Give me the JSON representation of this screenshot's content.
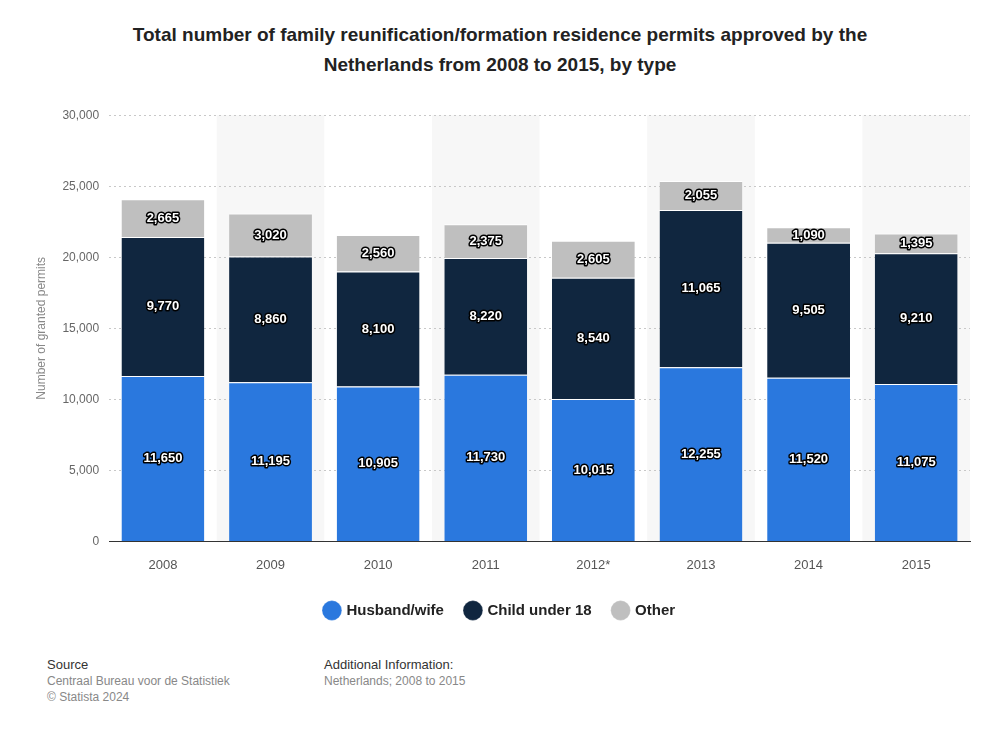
{
  "chart_data": {
    "type": "bar",
    "title": "Total number of family reunification/formation residence permits approved by the Netherlands from 2008 to 2015, by type",
    "y_label": "Number of granted permits",
    "categories": [
      "2008",
      "2009",
      "2010",
      "2011",
      "2012*",
      "2013",
      "2014",
      "2015"
    ],
    "series": [
      {
        "name": "Husband/wife",
        "color": "#2a78de",
        "values": [
          11650,
          11195,
          10905,
          11730,
          10015,
          12255,
          11520,
          11075
        ],
        "value_labels": [
          "11,650",
          "11,195",
          "10,905",
          "11,730",
          "10,015",
          "12,255",
          "11,520",
          "11,075"
        ]
      },
      {
        "name": "Child under 18",
        "color": "#10263f",
        "values": [
          9770,
          8860,
          8100,
          8220,
          8540,
          11065,
          9505,
          9210
        ],
        "value_labels": [
          "9,770",
          "8,860",
          "8,100",
          "8,220",
          "8,540",
          "11,065",
          "9,505",
          "9,210"
        ]
      },
      {
        "name": "Other",
        "color": "#bfbfbf",
        "values": [
          2665,
          3020,
          2560,
          2375,
          2605,
          2055,
          1090,
          1395
        ],
        "value_labels": [
          "2,665",
          "3,020",
          "2,560",
          "2,375",
          "2,605",
          "2,055",
          "1,090",
          "1,395"
        ]
      }
    ],
    "ylim": [
      0,
      30000
    ],
    "yticks": [
      0,
      {
        "value": 5000,
        "label": "5,000"
      },
      {
        "value": 10000,
        "label": "10,000"
      },
      {
        "value": 15000,
        "label": "15,000"
      },
      {
        "value": 20000,
        "label": "20,000"
      },
      {
        "value": 25000,
        "label": "25,000"
      },
      {
        "value": 30000,
        "label": "30,000"
      }
    ],
    "grid": true,
    "stacked": true,
    "data_labels": true,
    "legend": "bottom"
  },
  "footer": {
    "source_heading": "Source",
    "source": "Centraal Bureau voor de Statistiek",
    "copyright": "© Statista 2024",
    "info_heading": "Additional Information:",
    "info": "Netherlands; 2008 to 2015"
  }
}
